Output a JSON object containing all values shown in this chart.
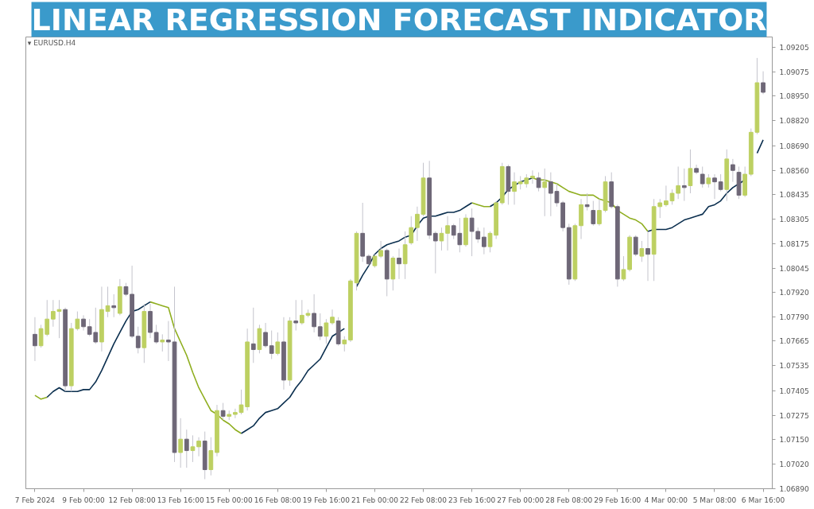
{
  "chart_data": {
    "type": "candlestick",
    "title": "LINEAR REGRESSION FORECAST INDICATOR",
    "annotations": [
      "▾ EURUSD.H4"
    ],
    "categories": [
      "7 Feb 2024",
      null,
      null,
      null,
      null,
      null,
      null,
      null,
      "9 Feb 00:00",
      null,
      null,
      null,
      null,
      null,
      null,
      null,
      "12 Feb 08:00",
      null,
      null,
      null,
      null,
      null,
      null,
      null,
      "13 Feb 16:00",
      null,
      null,
      null,
      null,
      null,
      null,
      null,
      "15 Feb 00:00",
      null,
      null,
      null,
      null,
      null,
      null,
      null,
      "16 Feb 08:00",
      null,
      null,
      null,
      null,
      null,
      null,
      null,
      "19 Feb 16:00",
      null,
      null,
      null,
      null,
      null,
      null,
      null,
      "21 Feb 00:00",
      null,
      null,
      null,
      null,
      null,
      null,
      null,
      "22 Feb 08:00",
      null,
      null,
      null,
      null,
      null,
      null,
      null,
      "23 Feb 16:00",
      null,
      null,
      null,
      null,
      null,
      null,
      null,
      "27 Feb 00:00",
      null,
      null,
      null,
      null,
      null,
      null,
      null,
      "28 Feb 08:00",
      null,
      null,
      null,
      null,
      null,
      null,
      null,
      "29 Feb 16:00",
      null,
      null,
      null,
      null,
      null,
      null,
      null,
      "4 Mar 00:00",
      null,
      null,
      null,
      null,
      null,
      null,
      null,
      "5 Mar 08:00",
      null,
      null,
      null,
      null,
      null,
      null,
      null,
      "6 Mar 16:00"
    ],
    "ohlc": [
      [
        1.077,
        1.0779,
        1.0756,
        1.0764
      ],
      [
        1.0764,
        1.0775,
        1.0763,
        1.0773
      ],
      [
        1.077,
        1.0788,
        1.0769,
        1.0778
      ],
      [
        1.0778,
        1.0788,
        1.0774,
        1.0782
      ],
      [
        1.0782,
        1.0788,
        1.0768,
        1.0783
      ],
      [
        1.0783,
        1.0784,
        1.074,
        1.0743
      ],
      [
        1.0743,
        1.0776,
        1.074,
        1.0773
      ],
      [
        1.0773,
        1.0782,
        1.0772,
        1.0778
      ],
      [
        1.0778,
        1.078,
        1.0772,
        1.0774
      ],
      [
        1.0774,
        1.0778,
        1.0769,
        1.077
      ],
      [
        1.0771,
        1.0784,
        1.0765,
        1.0766
      ],
      [
        1.0766,
        1.0795,
        1.0761,
        1.0783
      ],
      [
        1.0782,
        1.0795,
        1.0779,
        1.0785
      ],
      [
        1.0785,
        1.0791,
        1.0779,
        1.0784
      ],
      [
        1.0781,
        1.0799,
        1.078,
        1.0795
      ],
      [
        1.0795,
        1.0797,
        1.079,
        1.0791
      ],
      [
        1.0791,
        1.0806,
        1.0768,
        1.0769
      ],
      [
        1.0769,
        1.0774,
        1.076,
        1.0763
      ],
      [
        1.0763,
        1.0786,
        1.0755,
        1.0782
      ],
      [
        1.0782,
        1.0786,
        1.0768,
        1.0771
      ],
      [
        1.0771,
        1.0775,
        1.0765,
        1.0766
      ],
      [
        1.0766,
        1.077,
        1.0761,
        1.0767
      ],
      [
        1.0767,
        1.0777,
        1.0756,
        1.0766
      ],
      [
        1.0766,
        1.0795,
        1.0703,
        1.0708
      ],
      [
        1.0708,
        1.0726,
        1.07,
        1.0715
      ],
      [
        1.0715,
        1.072,
        1.07,
        1.0709
      ],
      [
        1.0709,
        1.0717,
        1.0703,
        1.0711
      ],
      [
        1.0711,
        1.0716,
        1.0706,
        1.0714
      ],
      [
        1.0714,
        1.0719,
        1.0694,
        1.0699
      ],
      [
        1.0699,
        1.0716,
        1.0696,
        1.0709
      ],
      [
        1.0708,
        1.0733,
        1.0706,
        1.073
      ],
      [
        1.073,
        1.0734,
        1.0725,
        1.0727
      ],
      [
        1.0727,
        1.073,
        1.0725,
        1.0728
      ],
      [
        1.0728,
        1.0731,
        1.0726,
        1.0729
      ],
      [
        1.0729,
        1.0741,
        1.0728,
        1.0733
      ],
      [
        1.0732,
        1.0773,
        1.073,
        1.0766
      ],
      [
        1.0765,
        1.0784,
        1.0755,
        1.0762
      ],
      [
        1.0762,
        1.0775,
        1.076,
        1.0773
      ],
      [
        1.0771,
        1.0776,
        1.0763,
        1.0764
      ],
      [
        1.0764,
        1.0772,
        1.0757,
        1.076
      ],
      [
        1.076,
        1.0771,
        1.0759,
        1.0766
      ],
      [
        1.0766,
        1.0779,
        1.0741,
        1.0746
      ],
      [
        1.0746,
        1.0779,
        1.0743,
        1.0777
      ],
      [
        1.0777,
        1.0788,
        1.0772,
        1.0776
      ],
      [
        1.0776,
        1.0788,
        1.0775,
        1.078
      ],
      [
        1.078,
        1.0783,
        1.0779,
        1.0781
      ],
      [
        1.0781,
        1.0791,
        1.0771,
        1.0774
      ],
      [
        1.0774,
        1.0781,
        1.0767,
        1.0769
      ],
      [
        1.0769,
        1.0778,
        1.0765,
        1.0776
      ],
      [
        1.0776,
        1.0783,
        1.0775,
        1.0779
      ],
      [
        1.0777,
        1.0779,
        1.0764,
        1.0765
      ],
      [
        1.0765,
        1.0769,
        1.0761,
        1.0767
      ],
      [
        1.0767,
        1.0799,
        1.0766,
        1.0798
      ],
      [
        1.0797,
        1.0824,
        1.0793,
        1.0823
      ],
      [
        1.0823,
        1.0839,
        1.0808,
        1.0811
      ],
      [
        1.0811,
        1.0812,
        1.0806,
        1.0807
      ],
      [
        1.0806,
        1.0812,
        1.0805,
        1.0811
      ],
      [
        1.0811,
        1.0819,
        1.081,
        1.0814
      ],
      [
        1.0814,
        1.0815,
        1.079,
        1.0799
      ],
      [
        1.0799,
        1.0811,
        1.0793,
        1.081
      ],
      [
        1.081,
        1.0815,
        1.0799,
        1.0807
      ],
      [
        1.0807,
        1.0824,
        1.0799,
        1.0817
      ],
      [
        1.0818,
        1.0832,
        1.0817,
        1.0826
      ],
      [
        1.0826,
        1.0837,
        1.0819,
        1.0833
      ],
      [
        1.0833,
        1.086,
        1.0832,
        1.0852
      ],
      [
        1.0852,
        1.0861,
        1.082,
        1.0822
      ],
      [
        1.0823,
        1.0824,
        1.0802,
        1.0819
      ],
      [
        1.0819,
        1.0826,
        1.0814,
        1.0823
      ],
      [
        1.0823,
        1.0832,
        1.0814,
        1.0827
      ],
      [
        1.0827,
        1.0828,
        1.082,
        1.0822
      ],
      [
        1.0823,
        1.0831,
        1.0813,
        1.0817
      ],
      [
        1.0817,
        1.0833,
        1.0816,
        1.0831
      ],
      [
        1.0831,
        1.0836,
        1.0811,
        1.0824
      ],
      [
        1.0824,
        1.0826,
        1.0818,
        1.082
      ],
      [
        1.0821,
        1.0826,
        1.0812,
        1.0816
      ],
      [
        1.0816,
        1.0824,
        1.0813,
        1.0823
      ],
      [
        1.0822,
        1.084,
        1.082,
        1.0839
      ],
      [
        1.0839,
        1.086,
        1.0838,
        1.0858
      ],
      [
        1.0858,
        1.0859,
        1.0838,
        1.0845
      ],
      [
        1.0845,
        1.0855,
        1.0838,
        1.085
      ],
      [
        1.0849,
        1.0853,
        1.0846,
        1.085
      ],
      [
        1.0849,
        1.0854,
        1.0847,
        1.0852
      ],
      [
        1.0852,
        1.0856,
        1.0849,
        1.0853
      ],
      [
        1.0852,
        1.0855,
        1.0845,
        1.0847
      ],
      [
        1.0847,
        1.0857,
        1.0832,
        1.085
      ],
      [
        1.085,
        1.0855,
        1.0832,
        1.0844
      ],
      [
        1.0845,
        1.0849,
        1.0837,
        1.0839
      ],
      [
        1.0839,
        1.084,
        1.0824,
        1.0826
      ],
      [
        1.0826,
        1.0828,
        1.0796,
        1.0799
      ],
      [
        1.0799,
        1.0828,
        1.0798,
        1.0827
      ],
      [
        1.0827,
        1.0841,
        1.082,
        1.0838
      ],
      [
        1.0838,
        1.0844,
        1.0835,
        1.0837
      ],
      [
        1.0835,
        1.084,
        1.0827,
        1.0828
      ],
      [
        1.0828,
        1.0841,
        1.0827,
        1.0835
      ],
      [
        1.0835,
        1.0853,
        1.0834,
        1.085
      ],
      [
        1.085,
        1.0855,
        1.0836,
        1.0837
      ],
      [
        1.0837,
        1.0838,
        1.0795,
        1.0799
      ],
      [
        1.0799,
        1.0811,
        1.0798,
        1.0804
      ],
      [
        1.0804,
        1.0822,
        1.0803,
        1.0821
      ],
      [
        1.0821,
        1.0822,
        1.0811,
        1.0812
      ],
      [
        1.0811,
        1.0819,
        1.0808,
        1.0815
      ],
      [
        1.0815,
        1.0824,
        1.0798,
        1.0812
      ],
      [
        1.0812,
        1.0841,
        1.0798,
        1.0837
      ],
      [
        1.0837,
        1.0841,
        1.0831,
        1.0839
      ],
      [
        1.0838,
        1.0848,
        1.0837,
        1.084
      ],
      [
        1.084,
        1.0846,
        1.0838,
        1.0844
      ],
      [
        1.0844,
        1.0858,
        1.0841,
        1.0848
      ],
      [
        1.0848,
        1.0857,
        1.084,
        1.0847
      ],
      [
        1.0848,
        1.0867,
        1.0844,
        1.0857
      ],
      [
        1.0857,
        1.0859,
        1.0854,
        1.0855
      ],
      [
        1.0854,
        1.0858,
        1.0847,
        1.0849
      ],
      [
        1.0849,
        1.0854,
        1.0847,
        1.0852
      ],
      [
        1.0852,
        1.0854,
        1.0841,
        1.085
      ],
      [
        1.085,
        1.0854,
        1.0845,
        1.0846
      ],
      [
        1.0846,
        1.0867,
        1.084,
        1.0862
      ],
      [
        1.0859,
        1.0862,
        1.085,
        1.0856
      ],
      [
        1.0855,
        1.0858,
        1.0841,
        1.0843
      ],
      [
        1.0843,
        1.0858,
        1.0842,
        1.0854
      ],
      [
        1.0854,
        1.0878,
        1.0853,
        1.0876
      ],
      [
        1.0876,
        1.0915,
        1.0875,
        1.0902
      ],
      [
        1.0902,
        1.0908,
        1.0896,
        1.0897
      ]
    ],
    "colors": [
      "#6e6777",
      "#bdd062",
      "#bdd062",
      "#bdd062",
      "#bdd062",
      "#6e6777",
      "#bdd062",
      "#bdd062",
      "#6e6777",
      "#6e6777",
      "#6e6777",
      "#bdd062",
      "#bdd062",
      "#6e6777",
      "#bdd062",
      "#6e6777",
      "#6e6777",
      "#6e6777",
      "#bdd062",
      "#6e6777",
      "#6e6777",
      "#bdd062",
      "#6e6777",
      "#6e6777",
      "#bdd062",
      "#6e6777",
      "#bdd062",
      "#bdd062",
      "#6e6777",
      "#bdd062",
      "#bdd062",
      "#6e6777",
      "#bdd062",
      "#bdd062",
      "#bdd062",
      "#bdd062",
      "#6e6777",
      "#bdd062",
      "#6e6777",
      "#6e6777",
      "#bdd062",
      "#6e6777",
      "#bdd062",
      "#6e6777",
      "#bdd062",
      "#bdd062",
      "#6e6777",
      "#6e6777",
      "#bdd062",
      "#bdd062",
      "#6e6777",
      "#bdd062",
      "#bdd062",
      "#bdd062",
      "#6e6777",
      "#6e6777",
      "#bdd062",
      "#bdd062",
      "#6e6777",
      "#bdd062",
      "#6e6777",
      "#bdd062",
      "#bdd062",
      "#bdd062",
      "#bdd062",
      "#6e6777",
      "#6e6777",
      "#bdd062",
      "#bdd062",
      "#6e6777",
      "#6e6777",
      "#bdd062",
      "#6e6777",
      "#6e6777",
      "#6e6777",
      "#bdd062",
      "#bdd062",
      "#bdd062",
      "#6e6777",
      "#bdd062",
      "#bdd062",
      "#bdd062",
      "#bdd062",
      "#6e6777",
      "#bdd062",
      "#6e6777",
      "#6e6777",
      "#6e6777",
      "#6e6777",
      "#bdd062",
      "#bdd062",
      "#6e6777",
      "#6e6777",
      "#bdd062",
      "#bdd062",
      "#6e6777",
      "#6e6777",
      "#bdd062",
      "#bdd062",
      "#6e6777",
      "#bdd062",
      "#6e6777",
      "#bdd062",
      "#bdd062",
      "#bdd062",
      "#bdd062",
      "#bdd062",
      "#6e6777",
      "#bdd062",
      "#6e6777",
      "#6e6777",
      "#bdd062",
      "#6e6777",
      "#6e6777",
      "#bdd062",
      "#6e6777",
      "#6e6777",
      "#bdd062",
      "#bdd062",
      "#bdd062",
      "#6e6777"
    ],
    "series": [
      {
        "type": "line",
        "color": "#0b2f4f",
        "values": [
          null,
          null,
          1.0737,
          1.074,
          1.0742,
          1.074,
          1.074,
          1.074,
          1.0741,
          1.0741,
          1.0745,
          1.0751,
          1.0758,
          1.0765,
          1.0771,
          1.0777,
          1.0782,
          1.0783,
          1.0785,
          1.0787,
          null,
          null,
          null,
          null,
          null,
          null,
          null,
          null,
          null,
          null,
          null,
          null,
          null,
          null,
          1.0718,
          1.072,
          1.0722,
          1.0726,
          1.0729,
          1.073,
          1.0731,
          1.0734,
          1.0737,
          1.0742,
          1.0746,
          1.0751,
          1.0754,
          1.0757,
          1.0763,
          1.0769,
          1.0771,
          1.0773,
          null,
          1.0795,
          1.0801,
          1.0806,
          1.0812,
          1.0815,
          1.0817,
          1.0818,
          1.0819,
          1.0821,
          1.0822,
          1.0827,
          1.0831,
          1.0832,
          1.0832,
          1.0833,
          1.0834,
          1.0834,
          1.0835,
          1.0837,
          1.0839,
          null,
          null,
          1.0837,
          1.0839,
          1.0842,
          1.0846,
          1.0848,
          1.085,
          1.0851,
          1.0852,
          null,
          null,
          null,
          null,
          null,
          null,
          null,
          null,
          null,
          null,
          null,
          null,
          null,
          null,
          null,
          null,
          null,
          null,
          1.0824,
          1.0825,
          1.0825,
          1.0825,
          1.0826,
          1.0828,
          1.083,
          1.0831,
          1.0832,
          1.0833,
          1.0837,
          1.0838,
          1.084,
          1.0844,
          1.0847,
          1.0849,
          1.0851,
          null,
          1.0865,
          1.0872
        ]
      },
      {
        "type": "line",
        "color": "#8fae1f",
        "values": [
          1.0738,
          1.0736,
          1.0737,
          null,
          null,
          null,
          null,
          null,
          null,
          null,
          null,
          null,
          null,
          null,
          null,
          null,
          null,
          null,
          null,
          1.0787,
          1.0786,
          1.0785,
          1.0784,
          1.0773,
          1.0766,
          1.0759,
          1.075,
          1.0742,
          1.0736,
          1.073,
          1.0728,
          1.0725,
          1.0723,
          1.072,
          1.0718,
          null,
          null,
          null,
          null,
          null,
          null,
          null,
          null,
          null,
          null,
          null,
          null,
          null,
          null,
          null,
          null,
          null,
          null,
          null,
          null,
          null,
          null,
          null,
          null,
          null,
          null,
          null,
          null,
          null,
          null,
          null,
          null,
          null,
          null,
          null,
          null,
          null,
          1.0839,
          1.0838,
          1.0837,
          1.0837,
          null,
          null,
          null,
          null,
          null,
          null,
          1.0852,
          1.0851,
          1.0851,
          1.085,
          1.0849,
          1.0847,
          1.0845,
          1.0844,
          1.0843,
          1.0843,
          1.0843,
          1.0841,
          1.084,
          1.0839,
          1.0835,
          1.0833,
          1.0831,
          1.083,
          1.0828,
          1.0824,
          null,
          null,
          null,
          null,
          null,
          null,
          null,
          null,
          null,
          null,
          null,
          null,
          null,
          null,
          null,
          null,
          null,
          null,
          null
        ]
      }
    ],
    "ylim": [
      1.0689,
      1.0926
    ],
    "yticks": [
      {
        "value": 1.0689,
        "label": "1.06890"
      },
      {
        "value": 1.0702,
        "label": "1.07020"
      },
      {
        "value": 1.0715,
        "label": "1.07150"
      },
      {
        "value": 1.07275,
        "label": "1.07275"
      },
      {
        "value": 1.07405,
        "label": "1.07405"
      },
      {
        "value": 1.07535,
        "label": "1.07535"
      },
      {
        "value": 1.07665,
        "label": "1.07665"
      },
      {
        "value": 1.0779,
        "label": "1.07790"
      },
      {
        "value": 1.0792,
        "label": "1.07920"
      },
      {
        "value": 1.08045,
        "label": "1.08045"
      },
      {
        "value": 1.08175,
        "label": "1.08175"
      },
      {
        "value": 1.08305,
        "label": "1.08305"
      },
      {
        "value": 1.08435,
        "label": "1.08435"
      },
      {
        "value": 1.0856,
        "label": "1.08560"
      },
      {
        "value": 1.0869,
        "label": "1.08690"
      },
      {
        "value": 1.0882,
        "label": "1.08820"
      },
      {
        "value": 1.0895,
        "label": "1.08950"
      },
      {
        "value": 1.09075,
        "label": "1.09075"
      },
      {
        "value": 1.09205,
        "label": "1.09205"
      }
    ]
  }
}
